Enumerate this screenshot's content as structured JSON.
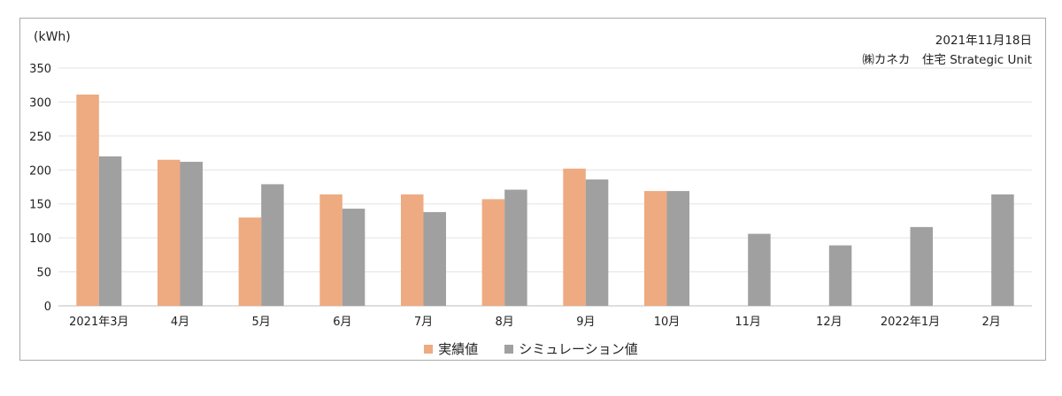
{
  "chart_data": {
    "type": "bar",
    "unit_label": "(kWh)",
    "date_label": "2021年11月18日",
    "org_label": "㈱カネカ　住宅 Strategic Unit",
    "categories": [
      "2021年3月",
      "4月",
      "5月",
      "6月",
      "7月",
      "8月",
      "9月",
      "10月",
      "11月",
      "12月",
      "2022年1月",
      "2月"
    ],
    "series": [
      {
        "name": "実績値",
        "color": "#eeaa80",
        "values": [
          311,
          215,
          130,
          164,
          164,
          157,
          202,
          169,
          null,
          null,
          null,
          null
        ]
      },
      {
        "name": "シミュレーション値",
        "color": "#a0a0a0",
        "values": [
          220,
          212,
          179,
          143,
          138,
          171,
          186,
          169,
          106,
          89,
          116,
          164
        ]
      }
    ],
    "ylim": [
      0,
      350
    ],
    "yticks": [
      0,
      50,
      100,
      150,
      200,
      250,
      300,
      350
    ],
    "grid": true,
    "legend_position": "bottom"
  }
}
